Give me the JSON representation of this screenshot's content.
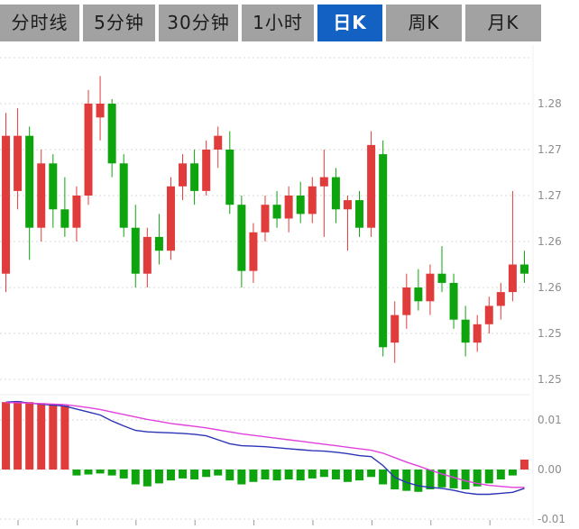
{
  "tabs": {
    "items": [
      {
        "label": "分时线",
        "active": false
      },
      {
        "label": "5分钟",
        "active": false
      },
      {
        "label": "30分钟",
        "active": false
      },
      {
        "label": "1小时",
        "active": false
      },
      {
        "label": "日K",
        "active": true
      },
      {
        "label": "周K",
        "active": false
      },
      {
        "label": "月K",
        "active": false
      }
    ],
    "active_index": 4
  },
  "colors": {
    "tab_bg": "#a2a2a2",
    "tab_text": "#1c1c1c",
    "tab_active_bg": "#1461c4",
    "tab_active_text": "#ffffff",
    "up": "#e03c3c",
    "down": "#0da40d",
    "dif_line": "#2b35b5",
    "dea_line": "#e141dd",
    "grid": "#d9d9d9",
    "axis_text": "#8c8c8c"
  },
  "chart_data": [
    {
      "type": "candlestick",
      "title": "",
      "xlabel": "",
      "ylabel": "",
      "legend": "none",
      "grid": "dotted-horizontal",
      "ylim": [
        1.2475,
        1.2865
      ],
      "y_grid_values": [
        1.285,
        1.28,
        1.275,
        1.27,
        1.265,
        1.26,
        1.255,
        1.25
      ],
      "y_axis_labels": [
        "",
        "1.28",
        "1.27",
        "1.27",
        "1.26",
        "1.26",
        "1.25",
        "1.25"
      ],
      "up_color_meaning": "close>=open (red, CN convention)",
      "down_color_meaning": "close<open (green, CN convention)",
      "candles_ohlc": [
        [
          1.2615,
          1.279,
          1.2595,
          1.2765
        ],
        [
          1.2705,
          1.2795,
          1.2685,
          1.2765
        ],
        [
          1.2765,
          1.2775,
          1.263,
          1.2665
        ],
        [
          1.2665,
          1.275,
          1.265,
          1.2735
        ],
        [
          1.2735,
          1.2745,
          1.2665,
          1.2685
        ],
        [
          1.2685,
          1.272,
          1.2655,
          1.2665
        ],
        [
          1.2665,
          1.271,
          1.265,
          1.27
        ],
        [
          1.27,
          1.2815,
          1.269,
          1.28
        ],
        [
          1.2785,
          1.283,
          1.276,
          1.28
        ],
        [
          1.28,
          1.2805,
          1.272,
          1.2735
        ],
        [
          1.2735,
          1.2745,
          1.2655,
          1.2665
        ],
        [
          1.2665,
          1.269,
          1.26,
          1.2615
        ],
        [
          1.2615,
          1.2665,
          1.26,
          1.2655
        ],
        [
          1.2655,
          1.268,
          1.2625,
          1.264
        ],
        [
          1.264,
          1.272,
          1.263,
          1.271
        ],
        [
          1.271,
          1.2745,
          1.2695,
          1.2735
        ],
        [
          1.2735,
          1.275,
          1.269,
          1.2705
        ],
        [
          1.2705,
          1.276,
          1.27,
          1.275
        ],
        [
          1.275,
          1.2775,
          1.273,
          1.2765
        ],
        [
          1.275,
          1.277,
          1.268,
          1.269
        ],
        [
          1.269,
          1.27,
          1.26,
          1.2618
        ],
        [
          1.2618,
          1.267,
          1.2605,
          1.266
        ],
        [
          1.266,
          1.27,
          1.265,
          1.269
        ],
        [
          1.269,
          1.2705,
          1.2665,
          1.2675
        ],
        [
          1.2675,
          1.271,
          1.266,
          1.27
        ],
        [
          1.27,
          1.2715,
          1.267,
          1.268
        ],
        [
          1.268,
          1.272,
          1.267,
          1.271
        ],
        [
          1.271,
          1.275,
          1.2655,
          1.272
        ],
        [
          1.272,
          1.273,
          1.267,
          1.2685
        ],
        [
          1.2685,
          1.27,
          1.264,
          1.2695
        ],
        [
          1.2695,
          1.2705,
          1.2655,
          1.2665
        ],
        [
          1.2665,
          1.277,
          1.2655,
          1.2755
        ],
        [
          1.2745,
          1.276,
          1.2525,
          1.2535
        ],
        [
          1.254,
          1.2585,
          1.2518,
          1.257
        ],
        [
          1.257,
          1.2615,
          1.2555,
          1.26
        ],
        [
          1.26,
          1.262,
          1.2575,
          1.2585
        ],
        [
          1.2585,
          1.2625,
          1.257,
          1.2615
        ],
        [
          1.2615,
          1.2645,
          1.2595,
          1.2605
        ],
        [
          1.2605,
          1.2615,
          1.2555,
          1.2565
        ],
        [
          1.2565,
          1.258,
          1.2525,
          1.254
        ],
        [
          1.254,
          1.257,
          1.253,
          1.256
        ],
        [
          1.256,
          1.259,
          1.255,
          1.258
        ],
        [
          1.258,
          1.2605,
          1.2565,
          1.2595
        ],
        [
          1.2595,
          1.2705,
          1.2585,
          1.2625
        ],
        [
          1.2625,
          1.264,
          1.2605,
          1.2615
        ]
      ]
    },
    {
      "type": "bar",
      "name": "MACD",
      "grid": "dotted-horizontal",
      "ylim": [
        -0.0065,
        0.0145
      ],
      "y_grid_values": [
        0.01,
        0,
        -0.01
      ],
      "y_axis_labels": [
        "0.01",
        "0.00",
        "-0.01"
      ],
      "bars": [
        0.0136,
        0.0138,
        0.0136,
        0.0134,
        0.0131,
        0.0129,
        -0.0012,
        -0.001,
        -0.0008,
        -0.0012,
        -0.0018,
        -0.003,
        -0.0034,
        -0.0028,
        -0.0022,
        -0.0018,
        -0.002,
        -0.0015,
        -0.0012,
        -0.0022,
        -0.003,
        -0.0025,
        -0.002,
        -0.0022,
        -0.002,
        -0.0022,
        -0.0018,
        -0.0015,
        -0.002,
        -0.0025,
        -0.0022,
        -0.0015,
        -0.003,
        -0.004,
        -0.0043,
        -0.0045,
        -0.004,
        -0.0036,
        -0.0038,
        -0.004,
        -0.0034,
        -0.0028,
        -0.002,
        -0.0012,
        0.002
      ],
      "series": [
        {
          "name": "DIF",
          "color": "#2b35b5",
          "values": [
            0.0136,
            0.0137,
            0.0134,
            0.0132,
            0.013,
            0.0128,
            0.0122,
            0.0116,
            0.011,
            0.0098,
            0.0088,
            0.0079,
            0.0076,
            0.0075,
            0.0074,
            0.0073,
            0.0071,
            0.0068,
            0.006,
            0.0052,
            0.0048,
            0.0047,
            0.0046,
            0.0044,
            0.0042,
            0.004,
            0.0038,
            0.0037,
            0.0035,
            0.0032,
            0.0028,
            0.0026,
            0.0008,
            -0.0016,
            -0.0026,
            -0.0033,
            -0.0036,
            -0.0038,
            -0.0042,
            -0.0047,
            -0.005,
            -0.005,
            -0.0048,
            -0.0046,
            -0.0038
          ]
        },
        {
          "name": "DEA",
          "color": "#e141dd",
          "values": [
            0.0135,
            0.0135,
            0.0134,
            0.0133,
            0.0132,
            0.0131,
            0.0128,
            0.0125,
            0.0121,
            0.0116,
            0.0111,
            0.0106,
            0.0101,
            0.0097,
            0.0093,
            0.009,
            0.0087,
            0.0084,
            0.008,
            0.0076,
            0.0072,
            0.0069,
            0.0066,
            0.0063,
            0.006,
            0.0057,
            0.0054,
            0.0051,
            0.0048,
            0.0045,
            0.0042,
            0.0039,
            0.0033,
            0.0024,
            0.0015,
            0.0007,
            -0.0001,
            -0.0009,
            -0.0016,
            -0.0023,
            -0.0028,
            -0.0032,
            -0.0034,
            -0.0036,
            -0.0036
          ]
        }
      ]
    }
  ]
}
